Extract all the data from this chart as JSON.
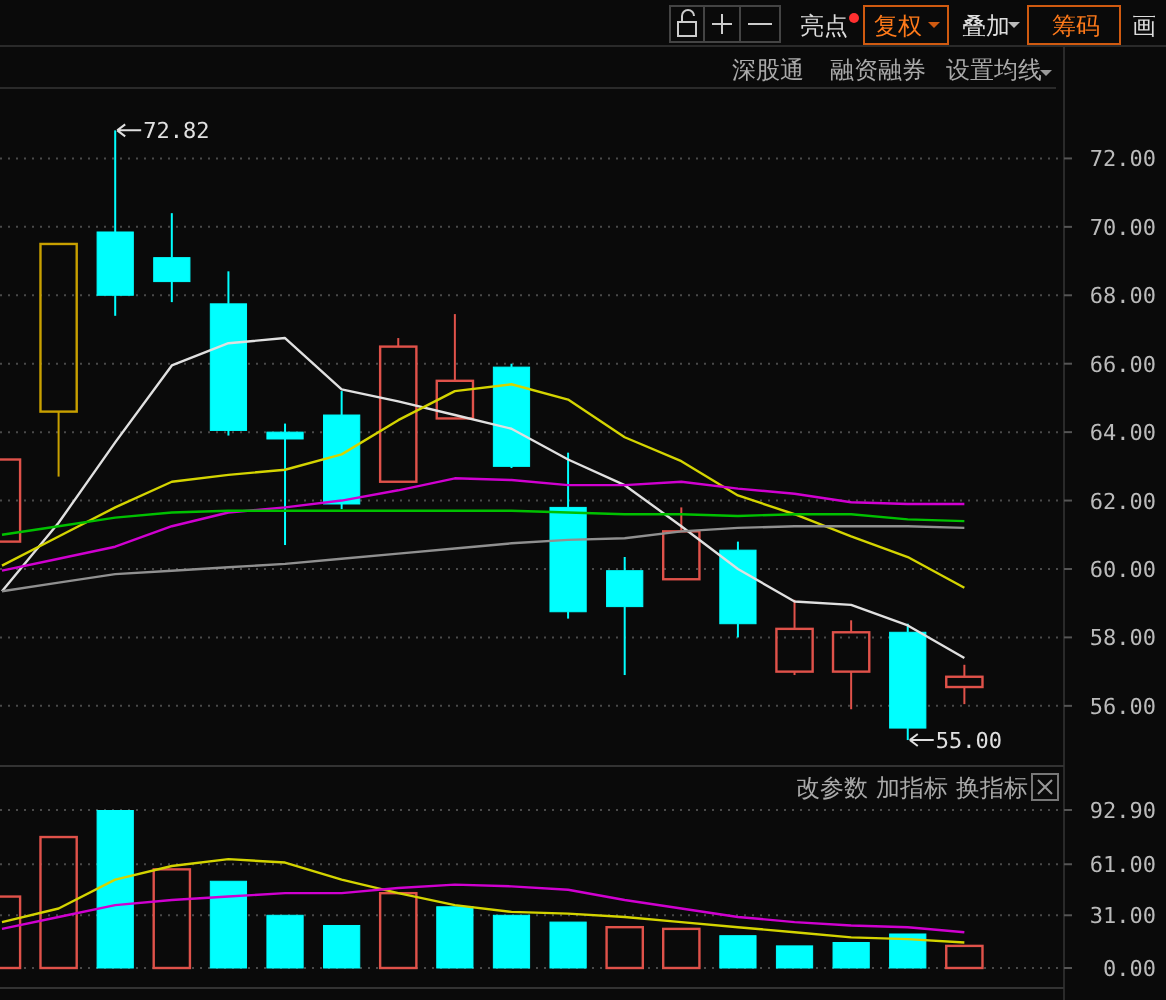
{
  "chart_data": [
    {
      "type": "candlestick",
      "categories": [
        null,
        null,
        null,
        null,
        null,
        null,
        null,
        null,
        null,
        null,
        null,
        null,
        null,
        null,
        null,
        null,
        null,
        null
      ],
      "ohlc": [
        [
          60.8,
          63.2,
          60.8,
          63.2
        ],
        [
          64.6,
          69.5,
          62.7,
          69.5
        ],
        [
          69.85,
          72.82,
          67.4,
          68.0
        ],
        [
          69.1,
          70.4,
          67.8,
          68.4
        ],
        [
          67.75,
          68.7,
          63.9,
          64.05
        ],
        [
          64.0,
          64.25,
          60.7,
          63.8
        ],
        [
          64.5,
          65.2,
          61.75,
          61.9
        ],
        [
          62.55,
          66.75,
          62.55,
          66.5
        ],
        [
          64.4,
          67.45,
          64.4,
          65.5
        ],
        [
          65.9,
          66.0,
          62.95,
          63.0
        ],
        [
          61.8,
          63.4,
          58.55,
          58.75
        ],
        [
          59.95,
          60.35,
          56.9,
          58.9
        ],
        [
          59.7,
          61.8,
          59.7,
          61.1
        ],
        [
          60.55,
          60.8,
          58.0,
          58.4
        ],
        [
          57.0,
          59.1,
          56.9,
          58.25
        ],
        [
          57.0,
          58.5,
          55.9,
          58.15
        ],
        [
          58.15,
          58.4,
          55.0,
          55.35
        ],
        [
          56.55,
          57.2,
          56.05,
          56.85
        ]
      ],
      "colors": [
        "#e0524a",
        "#c8a000",
        "#00ffff",
        "#00ffff",
        "#00ffff",
        "#00ffff",
        "#00ffff",
        "#e0524a",
        "#e0524a",
        "#00ffff",
        "#00ffff",
        "#00ffff",
        "#e0524a",
        "#00ffff",
        "#e0524a",
        "#e0524a",
        "#00ffff",
        "#e0524a"
      ],
      "series": [
        {
          "type": "line",
          "color": "#e0e0e0",
          "values": [
            59.35,
            61.35,
            63.7,
            65.95,
            66.6,
            66.75,
            65.25,
            64.9,
            64.5,
            64.1,
            63.2,
            62.45,
            61.25,
            60.0,
            59.05,
            58.95,
            58.35,
            57.4
          ]
        },
        {
          "type": "line",
          "color": "#d4d400",
          "values": [
            60.1,
            60.95,
            61.8,
            62.55,
            62.75,
            62.9,
            63.35,
            64.35,
            65.2,
            65.4,
            64.95,
            63.85,
            63.15,
            62.15,
            61.6,
            60.95,
            60.35,
            59.45
          ]
        },
        {
          "type": "line",
          "color": "#d000d0",
          "values": [
            59.95,
            60.3,
            60.65,
            61.25,
            61.65,
            61.8,
            62.0,
            62.3,
            62.65,
            62.6,
            62.45,
            62.45,
            62.55,
            62.35,
            62.2,
            61.95,
            61.9,
            61.9
          ]
        },
        {
          "type": "line",
          "color": "#00c000",
          "values": [
            61.0,
            61.25,
            61.5,
            61.65,
            61.7,
            61.7,
            61.7,
            61.7,
            61.7,
            61.7,
            61.65,
            61.6,
            61.6,
            61.55,
            61.6,
            61.6,
            61.45,
            61.4
          ]
        },
        {
          "type": "line",
          "color": "#909090",
          "values": [
            59.35,
            59.6,
            59.85,
            59.95,
            60.05,
            60.15,
            60.3,
            60.45,
            60.6,
            60.75,
            60.85,
            60.9,
            61.1,
            61.2,
            61.25,
            61.25,
            61.25,
            61.2
          ]
        }
      ],
      "ylim": [
        54.3,
        74.0
      ],
      "yticks": [
        {
          "value": 56,
          "label": "56.00"
        },
        {
          "value": 58,
          "label": "58.00"
        },
        {
          "value": 60,
          "label": "60.00"
        },
        {
          "value": 62,
          "label": "62.00"
        },
        {
          "value": 64,
          "label": "64.00"
        },
        {
          "value": 66,
          "label": "66.00"
        },
        {
          "value": 68,
          "label": "68.00"
        },
        {
          "value": 70,
          "label": "70.00"
        },
        {
          "value": 72,
          "label": "72.00"
        }
      ],
      "grid": "y",
      "annotations": [
        "72.82",
        "55.00",
        "亮点",
        "复权",
        "叠加",
        "筹码",
        "画",
        "深股通",
        "融资融券",
        "设置均线"
      ]
    },
    {
      "type": "bar",
      "categories": [
        null,
        null,
        null,
        null,
        null,
        null,
        null,
        null,
        null,
        null,
        null,
        null,
        null,
        null,
        null,
        null,
        null,
        null
      ],
      "values": [
        42,
        77,
        92.9,
        58,
        51,
        31,
        25,
        44,
        36,
        31,
        27,
        24,
        23,
        19,
        13,
        15,
        20,
        13
      ],
      "colors": [
        "#e0524a",
        "#e0524a",
        "#00ffff",
        "#e0524a",
        "#00ffff",
        "#00ffff",
        "#00ffff",
        "#e0524a",
        "#00ffff",
        "#00ffff",
        "#00ffff",
        "#e0524a",
        "#e0524a",
        "#00ffff",
        "#00ffff",
        "#00ffff",
        "#00ffff",
        "#e0524a"
      ],
      "series": [
        {
          "type": "line",
          "color": "#d4d400",
          "values": [
            27,
            35,
            52,
            60,
            64,
            62,
            52,
            44,
            37,
            33,
            32,
            30,
            27,
            24,
            21,
            18,
            17,
            15
          ]
        },
        {
          "type": "line",
          "color": "#d000d0",
          "values": [
            23,
            30,
            37,
            40,
            42,
            44,
            44,
            47,
            49,
            48,
            46,
            40,
            35,
            30,
            27,
            25,
            24,
            21
          ]
        }
      ],
      "ylim": [
        0,
        92.9
      ],
      "yticks": [
        {
          "value": 0,
          "label": "0.00"
        },
        {
          "value": 31,
          "label": "31.00"
        },
        {
          "value": 61,
          "label": "61.00"
        },
        {
          "value": 92.9,
          "label": "92.90"
        }
      ],
      "grid": "y",
      "annotations": [
        "改参数",
        "加指标",
        "换指标"
      ]
    }
  ]
}
